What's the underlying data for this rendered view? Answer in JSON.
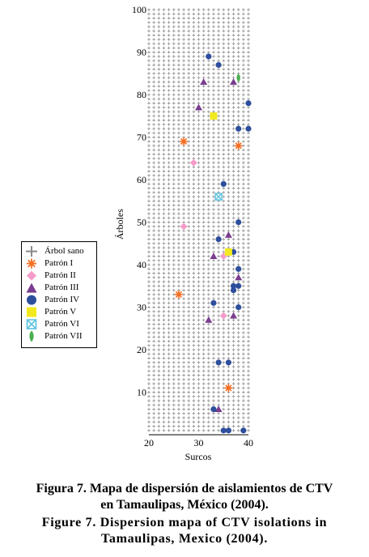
{
  "chart_data": {
    "type": "scatter",
    "xlabel": "Surcos",
    "ylabel": "Árboles",
    "xlim": [
      20,
      40
    ],
    "ylim": [
      0,
      100
    ],
    "xticks": [
      20,
      30,
      40
    ],
    "yticks": [
      10,
      20,
      30,
      40,
      50,
      60,
      70,
      80,
      90,
      100
    ],
    "grid": false,
    "legend_position": "left",
    "background_series": {
      "name": "Árbol sano",
      "x_range": [
        20,
        40
      ],
      "y_range": [
        1,
        100
      ],
      "color": "#9e9e9e"
    },
    "series": [
      {
        "name": "Patrón I",
        "color": "#f26d21",
        "points": [
          {
            "x": 27,
            "y": 69
          },
          {
            "x": 38,
            "y": 68
          },
          {
            "x": 26,
            "y": 33
          },
          {
            "x": 36,
            "y": 11
          }
        ]
      },
      {
        "name": "Patrón II",
        "color": "#f59cc9",
        "points": [
          {
            "x": 29,
            "y": 64
          },
          {
            "x": 27,
            "y": 49
          },
          {
            "x": 35,
            "y": 42
          },
          {
            "x": 35,
            "y": 28
          }
        ]
      },
      {
        "name": "Patrón III",
        "color": "#7a3d8f",
        "points": [
          {
            "x": 31,
            "y": 83
          },
          {
            "x": 37,
            "y": 83
          },
          {
            "x": 30,
            "y": 77
          },
          {
            "x": 36,
            "y": 47
          },
          {
            "x": 33,
            "y": 42
          },
          {
            "x": 38,
            "y": 37
          },
          {
            "x": 32,
            "y": 27
          },
          {
            "x": 37,
            "y": 28
          },
          {
            "x": 34,
            "y": 6
          }
        ]
      },
      {
        "name": "Patrón IV",
        "color": "#2d4e9c",
        "points": [
          {
            "x": 32,
            "y": 89
          },
          {
            "x": 34,
            "y": 87
          },
          {
            "x": 40,
            "y": 78
          },
          {
            "x": 38,
            "y": 72
          },
          {
            "x": 40,
            "y": 72
          },
          {
            "x": 35,
            "y": 59
          },
          {
            "x": 38,
            "y": 50
          },
          {
            "x": 34,
            "y": 46
          },
          {
            "x": 37,
            "y": 43
          },
          {
            "x": 38,
            "y": 39
          },
          {
            "x": 37,
            "y": 35
          },
          {
            "x": 38,
            "y": 35
          },
          {
            "x": 37,
            "y": 34
          },
          {
            "x": 33,
            "y": 31
          },
          {
            "x": 38,
            "y": 30
          },
          {
            "x": 34,
            "y": 17
          },
          {
            "x": 36,
            "y": 17
          },
          {
            "x": 33,
            "y": 6
          },
          {
            "x": 35,
            "y": 1
          },
          {
            "x": 36,
            "y": 1
          },
          {
            "x": 39,
            "y": 1
          }
        ]
      },
      {
        "name": "Patrón V",
        "color": "#f2ea1e",
        "points": [
          {
            "x": 33,
            "y": 75
          },
          {
            "x": 36,
            "y": 43
          }
        ]
      },
      {
        "name": "Patrón VI",
        "color": "#5bc3df",
        "points": [
          {
            "x": 34,
            "y": 56
          }
        ]
      },
      {
        "name": "Patrón VII",
        "color": "#4caf50",
        "points": [
          {
            "x": 38,
            "y": 84
          }
        ]
      }
    ]
  },
  "captions": {
    "es_line1": "Figura 7. Mapa de dispersión de aislamientos de CTV",
    "es_line2": "en Tamaulipas, México (2004).",
    "en_line1": "Figure 7. Dispersion mapa of CTV isolations in",
    "en_line2": "Tamaulipas, Mexico (2004)."
  }
}
